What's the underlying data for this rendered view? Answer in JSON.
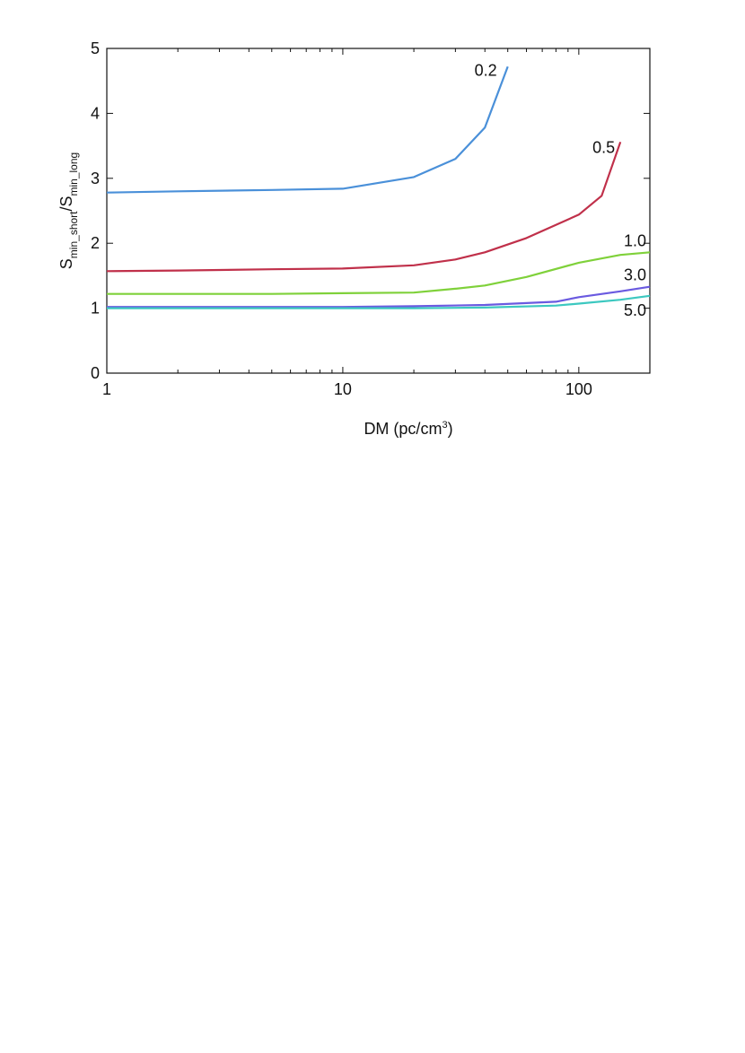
{
  "chart_data": {
    "type": "line",
    "xlabel_main": "DM (pc/cm",
    "xlabel_sup": "3",
    "xlabel_end": ")",
    "ylabel": {
      "s1": "S",
      "sub1": "min_short",
      "sep": "/S",
      "sub2": "min_long"
    },
    "xscale": "log",
    "xlim": [
      1,
      200
    ],
    "ylim": [
      0,
      5
    ],
    "xticks": [
      1,
      10,
      100
    ],
    "xtick_labels": [
      "1",
      "10",
      "100"
    ],
    "yticks": [
      0,
      1,
      2,
      3,
      4,
      5
    ],
    "ytick_labels": [
      "0",
      "1",
      "2",
      "3",
      "4",
      "5"
    ],
    "grid": false,
    "series": [
      {
        "name": "0.2",
        "color": "#4a90d9",
        "x": [
          1,
          2,
          5,
          10,
          20,
          30,
          40,
          50
        ],
        "y": [
          2.78,
          2.8,
          2.82,
          2.84,
          3.02,
          3.3,
          3.78,
          4.72
        ]
      },
      {
        "name": "0.5",
        "color": "#c0304a",
        "x": [
          1,
          2,
          5,
          10,
          20,
          30,
          40,
          60,
          100,
          125,
          150
        ],
        "y": [
          1.57,
          1.58,
          1.6,
          1.61,
          1.66,
          1.75,
          1.86,
          2.08,
          2.44,
          2.73,
          3.56
        ]
      },
      {
        "name": "1.0",
        "color": "#7fd13a",
        "x": [
          1,
          2,
          5,
          10,
          20,
          30,
          40,
          60,
          100,
          150,
          200
        ],
        "y": [
          1.22,
          1.22,
          1.22,
          1.23,
          1.24,
          1.3,
          1.35,
          1.48,
          1.7,
          1.82,
          1.86
        ]
      },
      {
        "name": "3.0",
        "color": "#6a5ae0",
        "x": [
          1,
          2,
          5,
          10,
          20,
          40,
          80,
          100,
          150,
          200
        ],
        "y": [
          1.02,
          1.02,
          1.02,
          1.02,
          1.03,
          1.05,
          1.1,
          1.17,
          1.26,
          1.33
        ]
      },
      {
        "name": "5.0",
        "color": "#3cc8c0",
        "x": [
          1,
          2,
          5,
          10,
          20,
          40,
          80,
          100,
          150,
          200
        ],
        "y": [
          1.0,
          1.0,
          1.0,
          1.0,
          1.0,
          1.01,
          1.04,
          1.07,
          1.13,
          1.19
        ]
      }
    ]
  }
}
